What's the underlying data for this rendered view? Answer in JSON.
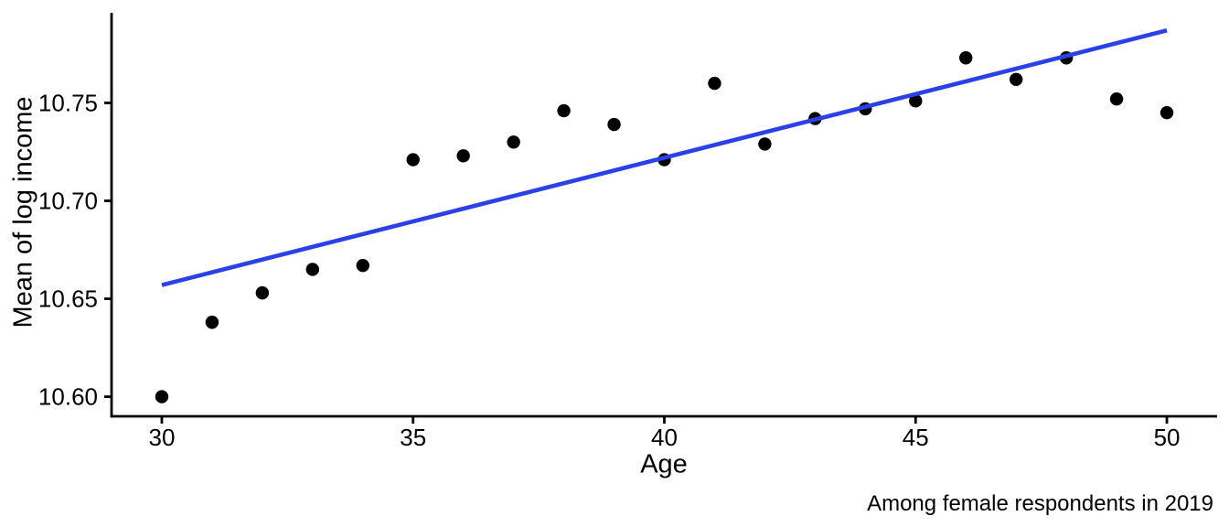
{
  "chart_data": {
    "type": "scatter",
    "title": "",
    "xlabel": "Age",
    "ylabel": "Mean of log income",
    "caption": "Among female respondents in 2019",
    "grid": false,
    "legend": "none",
    "xlim": [
      29,
      51
    ],
    "ylim": [
      10.59,
      10.796
    ],
    "x_ticks": [
      30,
      35,
      40,
      45,
      50
    ],
    "x_tick_labels": [
      "30",
      "35",
      "40",
      "45",
      "50"
    ],
    "y_ticks": [
      10.6,
      10.65,
      10.7,
      10.75
    ],
    "y_tick_labels": [
      "10.60",
      "10.65",
      "10.70",
      "10.75"
    ],
    "point_color": "#000000",
    "trend_color": "#2B40E6",
    "axis_color": "#000000",
    "series": [
      {
        "name": "mean-log-income-by-age",
        "x": [
          30,
          31,
          32,
          33,
          34,
          35,
          36,
          37,
          38,
          39,
          40,
          41,
          42,
          43,
          44,
          45,
          46,
          47,
          48,
          49,
          50
        ],
        "y": [
          10.6,
          10.638,
          10.653,
          10.665,
          10.667,
          10.721,
          10.723,
          10.73,
          10.746,
          10.739,
          10.721,
          10.76,
          10.729,
          10.742,
          10.747,
          10.751,
          10.773,
          10.762,
          10.773,
          10.752,
          10.745
        ]
      }
    ],
    "trend_line": {
      "name": "linear-fit",
      "x": [
        30,
        50
      ],
      "y": [
        10.657,
        10.787
      ]
    }
  }
}
